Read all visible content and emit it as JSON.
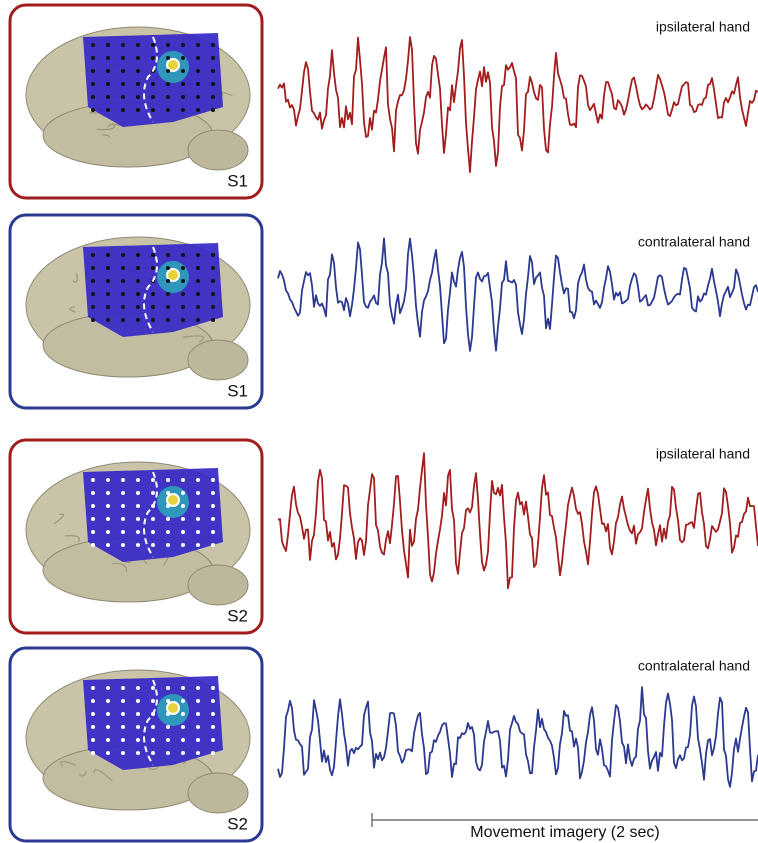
{
  "panels": [
    {
      "subject": "S1",
      "condition": "ipsilateral hand"
    },
    {
      "subject": "S1",
      "condition": "contralateral hand"
    },
    {
      "subject": "S2",
      "condition": "ipsilateral hand"
    },
    {
      "subject": "S2",
      "condition": "contralateral hand"
    }
  ],
  "scale_bar": {
    "label": "Movement imagery (2 sec)"
  }
}
